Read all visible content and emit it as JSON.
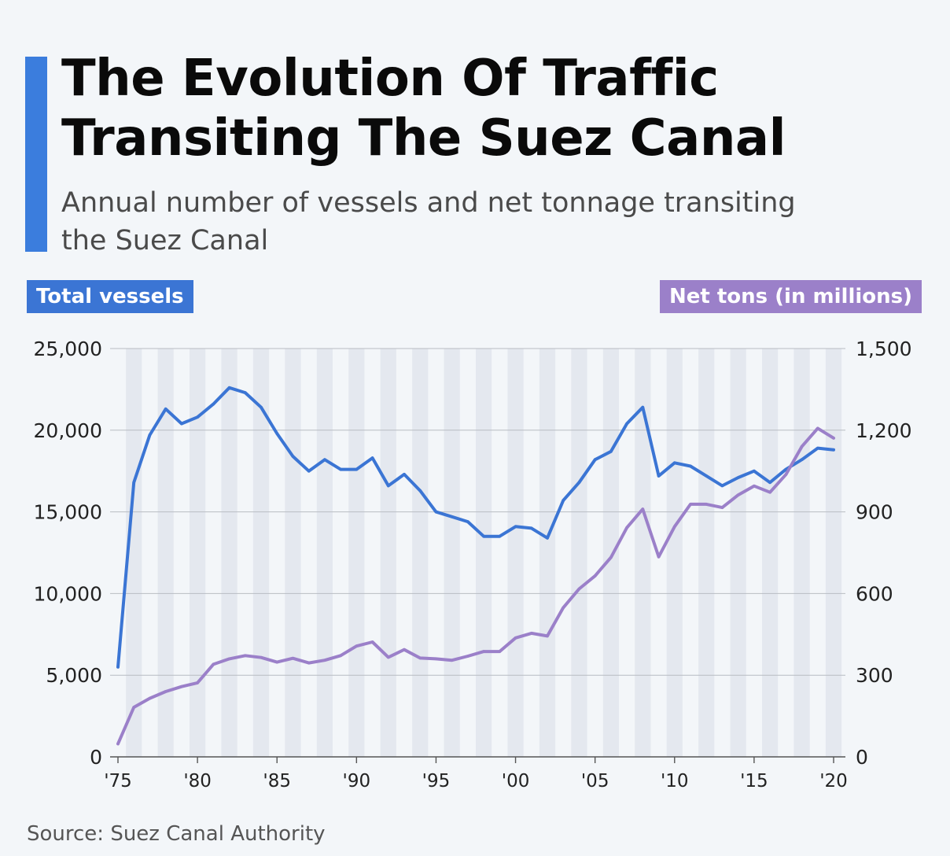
{
  "header": {
    "title": "The Evolution Of Traffic Transiting The Suez Canal",
    "subtitle": "Annual number of vessels and net tonnage transiting the Suez Canal"
  },
  "legend": {
    "left_label": "Total vessels",
    "right_label": "Net tons (in millions)"
  },
  "footer": {
    "source": "Source: Suez Canal Authority"
  },
  "colors": {
    "vessels": "#3b75d4",
    "tons": "#9b80c9",
    "accent": "#3b7ddd",
    "band": "#e4e8ef",
    "grid": "#b8bcc2"
  },
  "chart_data": {
    "type": "line",
    "title": "The Evolution Of Traffic Transiting The Suez Canal",
    "x": [
      1975,
      1976,
      1977,
      1978,
      1979,
      1980,
      1981,
      1982,
      1983,
      1984,
      1985,
      1986,
      1987,
      1988,
      1989,
      1990,
      1991,
      1992,
      1993,
      1994,
      1995,
      1996,
      1997,
      1998,
      1999,
      2000,
      2001,
      2002,
      2003,
      2004,
      2005,
      2006,
      2007,
      2008,
      2009,
      2010,
      2011,
      2012,
      2013,
      2014,
      2015,
      2016,
      2017,
      2018,
      2019,
      2020
    ],
    "x_tick_labels": [
      "'75",
      "'80",
      "'85",
      "'90",
      "'95",
      "'00",
      "'05",
      "'10",
      "'15",
      "'20"
    ],
    "x_tick_values": [
      1975,
      1980,
      1985,
      1990,
      1995,
      2000,
      2005,
      2010,
      2015,
      2020
    ],
    "series": [
      {
        "name": "Total vessels",
        "axis": "left",
        "values": [
          5500,
          16800,
          19700,
          21300,
          20400,
          20800,
          21600,
          22600,
          22300,
          21400,
          19800,
          18400,
          17500,
          18200,
          17600,
          17600,
          18300,
          16600,
          17300,
          16300,
          15000,
          14700,
          14400,
          13500,
          13500,
          14100,
          14000,
          13400,
          15700,
          16800,
          18200,
          18700,
          20400,
          21400,
          17200,
          18000,
          17800,
          17200,
          16600,
          17100,
          17500,
          16800,
          17600,
          18200,
          18900,
          18800
        ]
      },
      {
        "name": "Net tons (in millions)",
        "axis": "right",
        "values": [
          48,
          182,
          215,
          240,
          258,
          272,
          340,
          360,
          372,
          365,
          348,
          362,
          345,
          355,
          372,
          407,
          422,
          366,
          394,
          363,
          360,
          355,
          370,
          387,
          387,
          437,
          454,
          444,
          548,
          617,
          665,
          733,
          842,
          910,
          735,
          846,
          928,
          928,
          916,
          962,
          995,
          972,
          1037,
          1140,
          1207,
          1171
        ]
      }
    ],
    "y_left": {
      "label": "Total vessels",
      "ylim": [
        0,
        25000
      ],
      "ticks": [
        0,
        5000,
        10000,
        15000,
        20000,
        25000
      ],
      "tick_labels": [
        "0",
        "5,000",
        "10,000",
        "15,000",
        "20,000",
        "25,000"
      ]
    },
    "y_right": {
      "label": "Net tons (in millions)",
      "ylim": [
        0,
        1500
      ],
      "ticks": [
        0,
        300,
        600,
        900,
        1200,
        1500
      ],
      "tick_labels": [
        "0",
        "300",
        "600",
        "900",
        "1,200",
        "1,500"
      ]
    },
    "grid": true
  }
}
